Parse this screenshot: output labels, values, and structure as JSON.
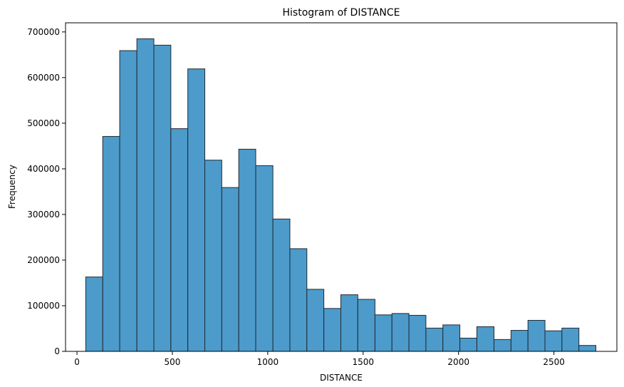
{
  "chart_data": {
    "type": "bar",
    "title": "Histogram of DISTANCE",
    "xlabel": "DISTANCE",
    "ylabel": "Frequency",
    "xlim": [
      -60,
      2830
    ],
    "ylim": [
      0,
      720000
    ],
    "xticks": [
      0,
      500,
      1000,
      1500,
      2000,
      2500
    ],
    "yticks": [
      0,
      100000,
      200000,
      300000,
      400000,
      500000,
      600000,
      700000
    ],
    "bin_edges": [
      46,
      135,
      224,
      314,
      403,
      492,
      581,
      670,
      759,
      848,
      937,
      1027,
      1116,
      1205,
      1294,
      1383,
      1472,
      1562,
      1651,
      1740,
      1829,
      1918,
      2007,
      2096,
      2186,
      2275,
      2364,
      2453,
      2542,
      2631,
      2720
    ],
    "values": [
      163000,
      471000,
      659000,
      685000,
      671000,
      488000,
      619000,
      419000,
      359000,
      443000,
      407000,
      290000,
      225000,
      136000,
      94000,
      124000,
      114000,
      80000,
      83000,
      79000,
      51000,
      58000,
      29000,
      54000,
      26000,
      46000,
      68000,
      45000,
      51000,
      13000
    ],
    "grid": false,
    "colors": {
      "bar_fill": "#4c9bcb",
      "bar_edge": "#1f2a33",
      "axes": "#000000"
    }
  }
}
